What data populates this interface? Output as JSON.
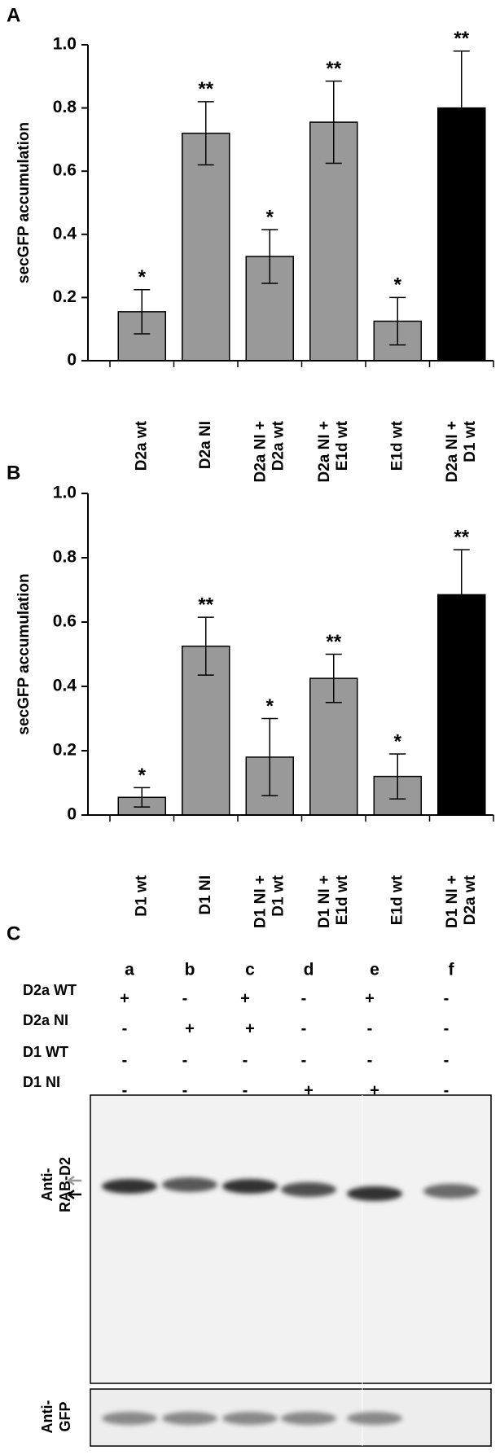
{
  "chart_data": [
    {
      "type": "bar",
      "panel": "A",
      "ylabel": "secGFP accumulation",
      "categories": [
        [
          "D2a wt"
        ],
        [
          "D2a NI"
        ],
        [
          "D2a NI +",
          "D2a wt"
        ],
        [
          "D2a NI +",
          "E1d wt"
        ],
        [
          "E1d wt"
        ],
        [
          "D2a NI +",
          "D1 wt"
        ]
      ],
      "values": [
        0.155,
        0.72,
        0.33,
        0.755,
        0.125,
        0.8
      ],
      "errors": [
        0.07,
        0.1,
        0.085,
        0.13,
        0.075,
        0.18
      ],
      "annotations": [
        "*",
        "**",
        "*",
        "**",
        "*",
        "**"
      ],
      "colors": [
        "#999999",
        "#999999",
        "#999999",
        "#999999",
        "#999999",
        "#000000"
      ],
      "ylim": [
        0,
        1
      ],
      "yticks": [
        0,
        0.2,
        0.4,
        0.6,
        0.8,
        {
          "value": 1,
          "label": "1.0"
        }
      ]
    },
    {
      "type": "bar",
      "panel": "B",
      "ylabel": "secGFP accumulation",
      "categories": [
        [
          "D1 wt"
        ],
        [
          "D1 NI"
        ],
        [
          "D1 NI +",
          "D1 wt"
        ],
        [
          "D1 NI +",
          "E1d wt"
        ],
        [
          "E1d wt"
        ],
        [
          "D1 NI +",
          "D2a wt"
        ]
      ],
      "values": [
        0.055,
        0.525,
        0.18,
        0.425,
        0.12,
        0.685
      ],
      "errors": [
        0.03,
        0.09,
        0.12,
        0.075,
        0.07,
        0.14
      ],
      "annotations": [
        "*",
        "**",
        "*",
        "**",
        "*",
        "**"
      ],
      "colors": [
        "#999999",
        "#999999",
        "#999999",
        "#999999",
        "#999999",
        "#000000"
      ],
      "ylim": [
        0,
        1
      ],
      "yticks": [
        0,
        0.2,
        0.4,
        0.6,
        0.8,
        {
          "value": 1,
          "label": "1.0"
        }
      ]
    }
  ],
  "blot": {
    "panel": "C",
    "lanes": [
      "a",
      "b",
      "c",
      "d",
      "e",
      "f"
    ],
    "rows": [
      {
        "label": "D2a WT",
        "signs": [
          "+",
          "-",
          "+",
          "-",
          "+",
          "-"
        ]
      },
      {
        "label": "D2a  NI",
        "signs": [
          "-",
          "+",
          "+",
          "-",
          "-",
          "-"
        ]
      },
      {
        "label": "D1  WT",
        "signs": [
          "-",
          "-",
          "-",
          "-",
          "-",
          "-"
        ]
      },
      {
        "label": "D1   NI",
        "signs": [
          "-",
          "-",
          "-",
          "+",
          "+",
          "-"
        ]
      }
    ],
    "antibodies": [
      [
        "Anti-",
        "RAB-D2"
      ],
      [
        "Anti-",
        "GFP"
      ]
    ]
  }
}
